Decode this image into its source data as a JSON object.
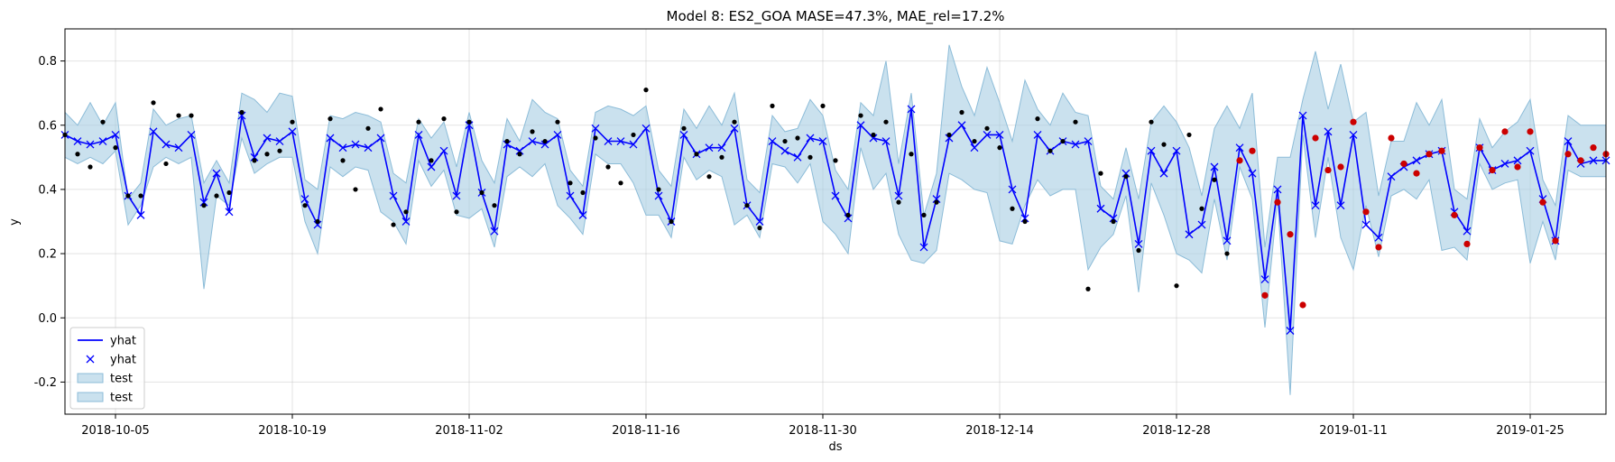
{
  "chart_data": {
    "type": "line",
    "title": "Model 8: ES2_GOA MASE=47.3%, MAE_rel=17.2%",
    "xlabel": "ds",
    "ylabel": "y",
    "x_start": "2018-10-01",
    "x_end": "2019-01-31",
    "ylim": [
      -0.3,
      0.9
    ],
    "yticks": [
      "-0.2",
      "0.0",
      "0.2",
      "0.4",
      "0.6",
      "0.8"
    ],
    "yticks_values": [
      -0.2,
      0.0,
      0.2,
      0.4,
      0.6,
      0.8
    ],
    "xticks": [
      "2018-10-05",
      "2018-10-19",
      "2018-11-02",
      "2018-11-16",
      "2018-11-30",
      "2018-12-14",
      "2018-12-28",
      "2019-01-11",
      "2019-01-25"
    ],
    "grid": true,
    "legend_position": "bottom-left",
    "legend": [
      {
        "label": "yhat",
        "kind": "line",
        "color": "#0000ff"
      },
      {
        "label": "yhat",
        "kind": "marker",
        "color": "#0000ff"
      },
      {
        "label": "test",
        "kind": "band",
        "color": "#a6cde2"
      },
      {
        "label": "test",
        "kind": "band",
        "color": "#a6cde2"
      }
    ],
    "colors": {
      "line": "#0000ff",
      "band": "#a6cde2",
      "band_edge": "#8cbcd8",
      "train": "#000000",
      "test_points": "#cc0000"
    },
    "yhat": [
      0.57,
      0.55,
      0.54,
      0.55,
      0.57,
      0.38,
      0.32,
      0.58,
      0.54,
      0.53,
      0.57,
      0.36,
      0.45,
      0.33,
      0.63,
      0.5,
      0.56,
      0.55,
      0.58,
      0.37,
      0.29,
      0.56,
      0.53,
      0.54,
      0.53,
      0.56,
      0.38,
      0.3,
      0.57,
      0.47,
      0.52,
      0.38,
      0.6,
      0.39,
      0.27,
      0.54,
      0.52,
      0.55,
      0.54,
      0.57,
      0.38,
      0.32,
      0.59,
      0.55,
      0.55,
      0.54,
      0.59,
      0.38,
      0.3,
      0.57,
      0.51,
      0.53,
      0.53,
      0.59,
      0.35,
      0.3,
      0.55,
      0.52,
      0.5,
      0.56,
      0.55,
      0.38,
      0.31,
      0.6,
      0.56,
      0.55,
      0.38,
      0.65,
      0.22,
      0.37,
      0.56,
      0.6,
      0.53,
      0.57,
      0.57,
      0.4,
      0.31,
      0.57,
      0.52,
      0.55,
      0.54,
      0.55,
      0.34,
      0.31,
      0.45,
      0.23,
      0.52,
      0.45,
      0.52,
      0.26,
      0.29,
      0.47,
      0.24,
      0.53,
      0.45,
      0.12,
      0.4,
      -0.04,
      0.63,
      0.35,
      0.58,
      0.35,
      0.57,
      0.29,
      0.25,
      0.44,
      0.47,
      0.49,
      0.51,
      0.52,
      0.33,
      0.27,
      0.53,
      0.46,
      0.48,
      0.49,
      0.52,
      0.37,
      0.24,
      0.55,
      0.48,
      0.49,
      0.49
    ],
    "upper": [
      0.64,
      0.6,
      0.67,
      0.6,
      0.67,
      0.37,
      0.42,
      0.65,
      0.6,
      0.62,
      0.63,
      0.42,
      0.49,
      0.42,
      0.7,
      0.68,
      0.64,
      0.7,
      0.69,
      0.43,
      0.4,
      0.63,
      0.62,
      0.64,
      0.63,
      0.61,
      0.45,
      0.42,
      0.62,
      0.56,
      0.61,
      0.47,
      0.64,
      0.49,
      0.42,
      0.62,
      0.55,
      0.68,
      0.64,
      0.62,
      0.46,
      0.41,
      0.64,
      0.66,
      0.65,
      0.63,
      0.66,
      0.46,
      0.41,
      0.65,
      0.59,
      0.66,
      0.6,
      0.7,
      0.43,
      0.39,
      0.63,
      0.58,
      0.59,
      0.68,
      0.63,
      0.46,
      0.4,
      0.67,
      0.63,
      0.8,
      0.48,
      0.7,
      0.32,
      0.45,
      0.85,
      0.72,
      0.63,
      0.78,
      0.67,
      0.55,
      0.74,
      0.65,
      0.6,
      0.7,
      0.64,
      0.63,
      0.41,
      0.37,
      0.53,
      0.37,
      0.61,
      0.66,
      0.61,
      0.53,
      0.38,
      0.59,
      0.66,
      0.59,
      0.7,
      0.22,
      0.5,
      0.5,
      0.68,
      0.83,
      0.65,
      0.79,
      0.61,
      0.64,
      0.38,
      0.55,
      0.55,
      0.67,
      0.6,
      0.68,
      0.4,
      0.37,
      0.62,
      0.53,
      0.58,
      0.61,
      0.68,
      0.43,
      0.35,
      0.63,
      0.6,
      0.6,
      0.6
    ],
    "lower": [
      0.5,
      0.48,
      0.5,
      0.48,
      0.52,
      0.29,
      0.35,
      0.47,
      0.5,
      0.48,
      0.5,
      0.09,
      0.38,
      0.35,
      0.56,
      0.45,
      0.48,
      0.5,
      0.5,
      0.3,
      0.2,
      0.47,
      0.44,
      0.47,
      0.46,
      0.33,
      0.3,
      0.23,
      0.49,
      0.41,
      0.46,
      0.32,
      0.31,
      0.34,
      0.22,
      0.44,
      0.47,
      0.44,
      0.48,
      0.35,
      0.31,
      0.26,
      0.51,
      0.48,
      0.48,
      0.42,
      0.32,
      0.32,
      0.25,
      0.5,
      0.43,
      0.46,
      0.44,
      0.29,
      0.32,
      0.25,
      0.48,
      0.47,
      0.42,
      0.48,
      0.3,
      0.26,
      0.2,
      0.53,
      0.4,
      0.45,
      0.26,
      0.18,
      0.17,
      0.21,
      0.45,
      0.43,
      0.4,
      0.39,
      0.24,
      0.23,
      0.35,
      0.43,
      0.38,
      0.4,
      0.4,
      0.15,
      0.22,
      0.26,
      0.38,
      0.08,
      0.42,
      0.32,
      0.2,
      0.18,
      0.14,
      0.37,
      0.18,
      0.47,
      0.37,
      -0.03,
      0.37,
      -0.24,
      0.57,
      0.25,
      0.5,
      0.25,
      0.15,
      0.35,
      0.19,
      0.38,
      0.4,
      0.37,
      0.43,
      0.21,
      0.22,
      0.18,
      0.48,
      0.4,
      0.42,
      0.43,
      0.17,
      0.3,
      0.18,
      0.46,
      0.44,
      0.44,
      0.44
    ],
    "actual": [
      0.57,
      0.51,
      0.47,
      0.61,
      0.53,
      0.38,
      0.38,
      0.67,
      0.48,
      0.63,
      0.63,
      0.35,
      0.38,
      0.39,
      0.64,
      0.49,
      0.51,
      0.52,
      0.61,
      0.35,
      0.3,
      0.62,
      0.49,
      0.4,
      0.59,
      0.65,
      0.29,
      0.33,
      0.61,
      0.49,
      0.62,
      0.33,
      0.61,
      0.39,
      0.35,
      0.55,
      0.51,
      0.58,
      0.55,
      0.61,
      0.42,
      0.39,
      0.56,
      0.47,
      0.42,
      0.57,
      0.71,
      0.4,
      0.3,
      0.59,
      0.51,
      0.44,
      0.5,
      0.61,
      0.35,
      0.28,
      0.66,
      0.55,
      0.56,
      0.5,
      0.66,
      0.49,
      0.32,
      0.63,
      0.57,
      0.61,
      0.36,
      0.51,
      0.32,
      0.36,
      0.57,
      0.64,
      0.55,
      0.59,
      0.53,
      0.34,
      0.3,
      0.62,
      0.52,
      0.55,
      0.61,
      0.09,
      0.45,
      0.3,
      0.44,
      0.21,
      0.61,
      0.54,
      0.1,
      0.57,
      0.34,
      0.43,
      0.2,
      0.49,
      0.52,
      0.07,
      0.36,
      0.26,
      0.04,
      0.56,
      0.46,
      0.47,
      0.61,
      0.33,
      0.22,
      0.56,
      0.48,
      0.45,
      0.51,
      0.52,
      0.32,
      0.23,
      0.53,
      0.46,
      0.58,
      0.47,
      0.58,
      0.36,
      0.24,
      0.51,
      0.49,
      0.53,
      0.51
    ],
    "test_start_index": 93
  }
}
